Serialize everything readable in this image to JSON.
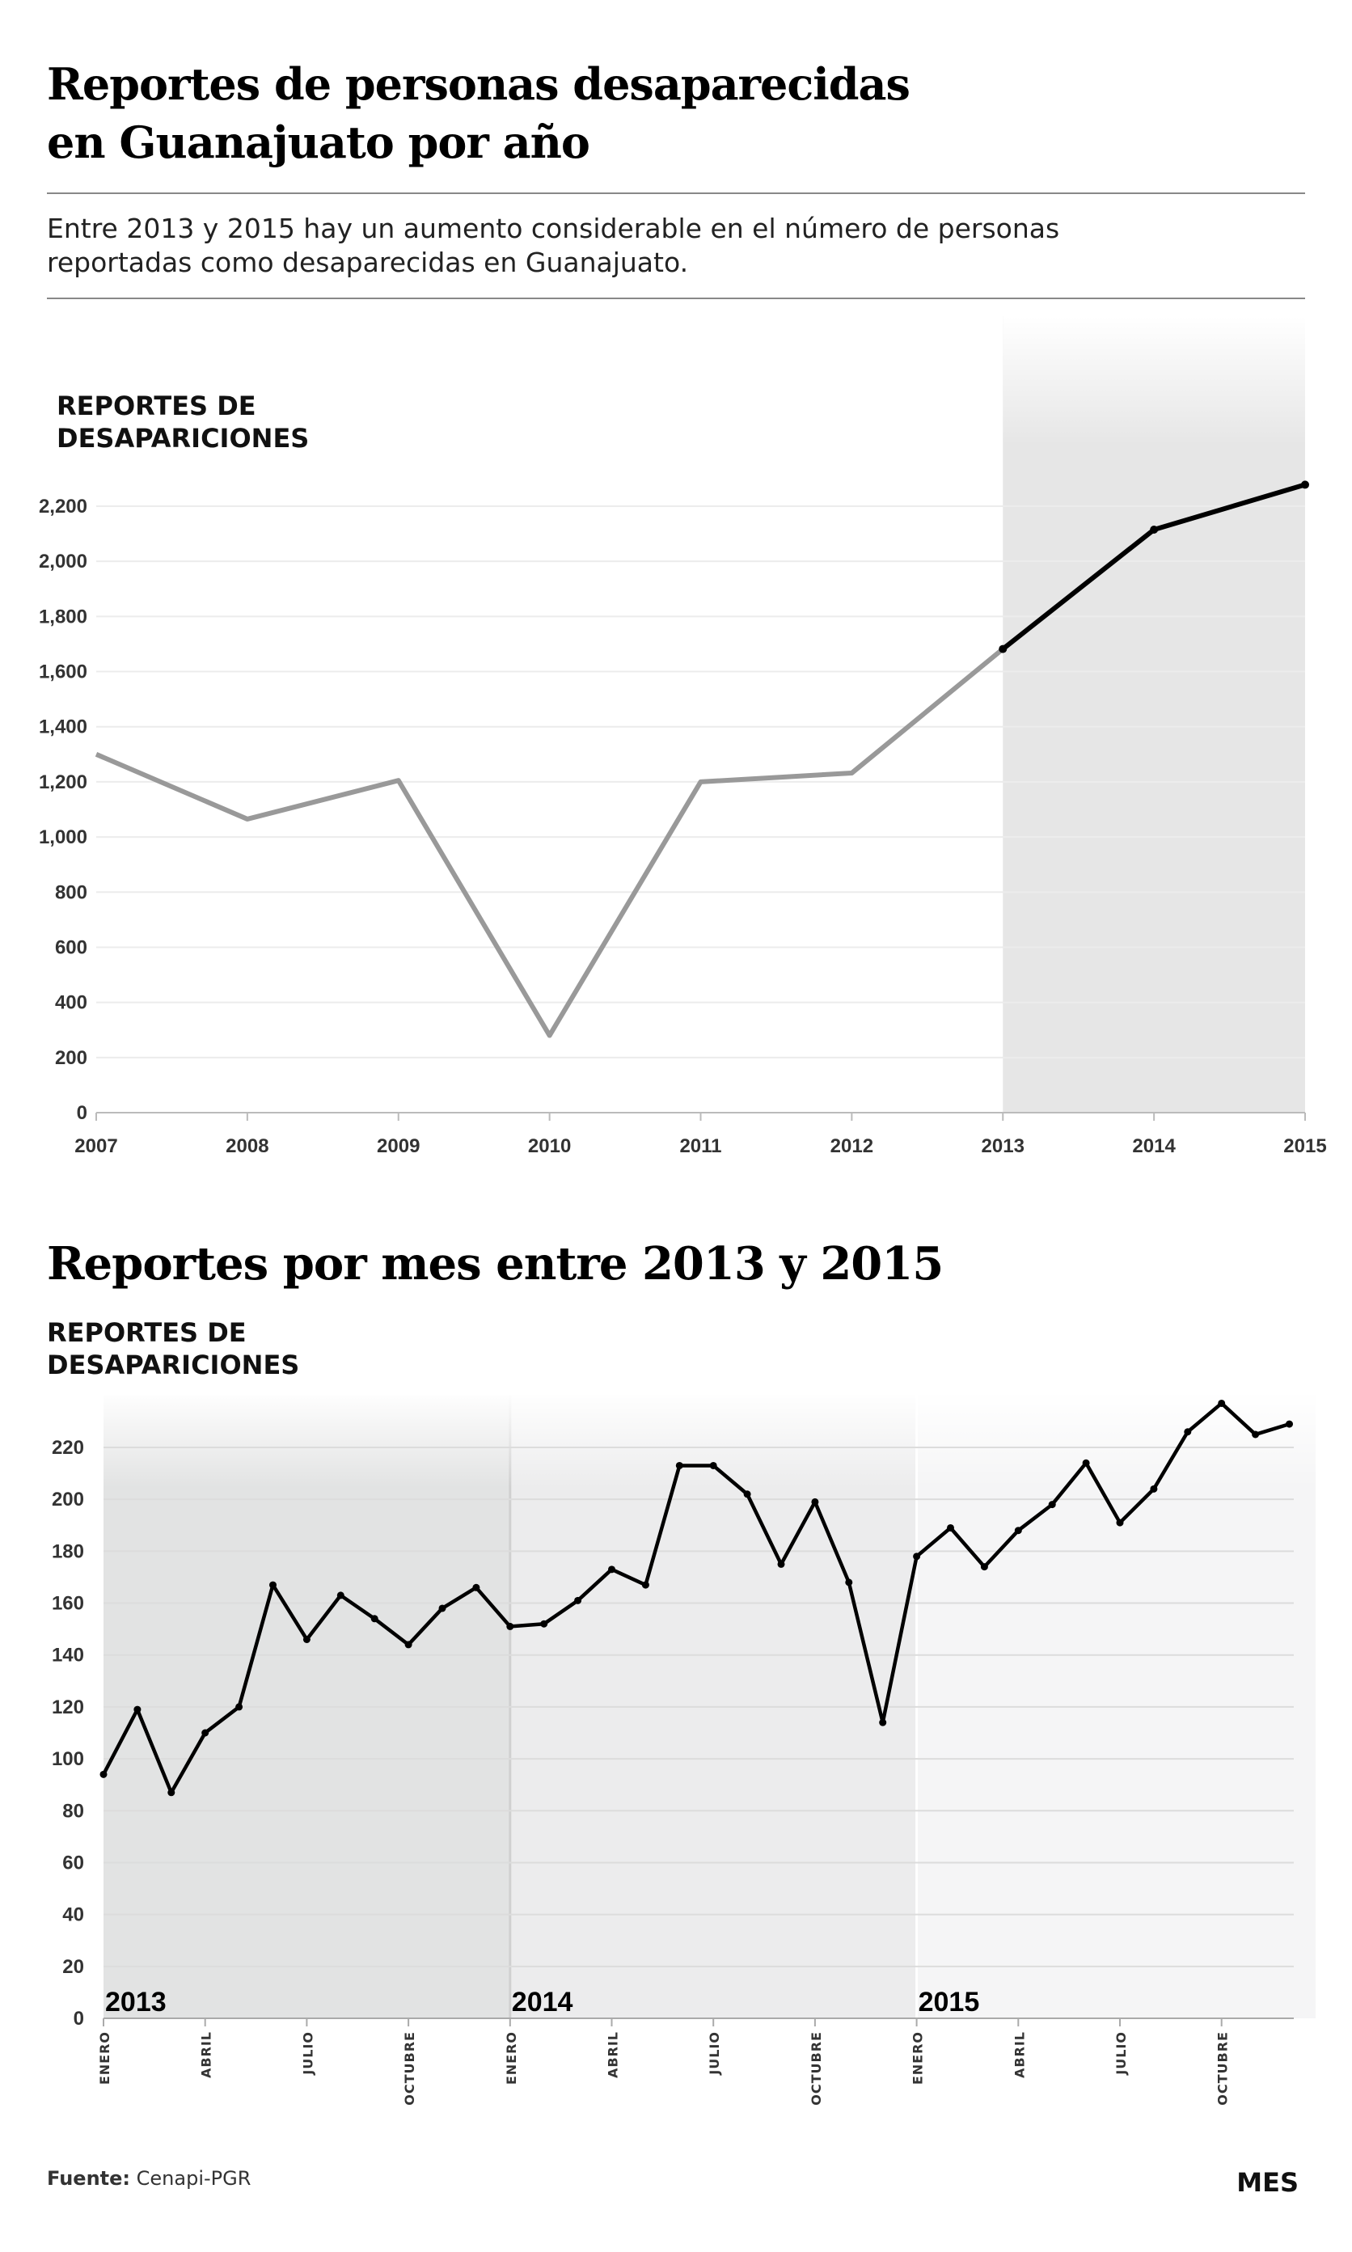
{
  "header": {
    "title_line1": "Reportes de personas desaparecidas",
    "title_line2": "en Guanajuato por año",
    "subtitle_line1": "Entre 2013 y 2015 hay un aumento considerable en el número de personas",
    "subtitle_line2": "reportadas como desaparecidas en Guanajuato."
  },
  "section2_title": "Reportes por mes entre 2013 y 2015",
  "footer": {
    "source_label": "Fuente:",
    "source_value": "Cenapi-PGR",
    "x_axis_label": "MES"
  },
  "colors": {
    "past": "#999999",
    "highlight": "#000000",
    "shade": "#e6e6e6"
  },
  "chart_data": [
    {
      "type": "line",
      "title": "Reportes de personas desaparecidas en Guanajuato por año",
      "ylabel_line1": "REPORTES DE",
      "ylabel_line2": "DESAPARICIONES",
      "xlabel": "",
      "x": [
        "2007",
        "2008",
        "2009",
        "2010",
        "2011",
        "2012",
        "2013",
        "2014",
        "2015"
      ],
      "values": [
        1300,
        1065,
        1205,
        280,
        1200,
        1232,
        1682,
        2115,
        2278
      ],
      "highlight_from": "2013",
      "ylim": [
        0,
        2300
      ],
      "yticks": [
        "0",
        "200",
        "400",
        "600",
        "800",
        "1,000",
        "1,200",
        "1,400",
        "1,600",
        "1,800",
        "2,000",
        "2,200"
      ],
      "grid": true
    },
    {
      "type": "line",
      "title": "Reportes por mes entre 2013 y 2015",
      "ylabel_line1": "REPORTES DE",
      "ylabel_line2": "DESAPARICIONES",
      "xlabel": "MES",
      "years": [
        "2013",
        "2014",
        "2015"
      ],
      "month_ticks": [
        "ENERO",
        "ABRIL",
        "JULIO",
        "OCTUBRE"
      ],
      "values": [
        94,
        119,
        87,
        110,
        120,
        167,
        146,
        163,
        154,
        144,
        158,
        166,
        151,
        152,
        161,
        173,
        167,
        213,
        213,
        202,
        175,
        199,
        168,
        114,
        178,
        189,
        174,
        188,
        198,
        214,
        191,
        204,
        226,
        237,
        225,
        229
      ],
      "ylim": [
        0,
        240
      ],
      "yticks": [
        "0",
        "20",
        "40",
        "60",
        "80",
        "100",
        "120",
        "140",
        "160",
        "180",
        "200",
        "220"
      ],
      "grid": true
    }
  ]
}
